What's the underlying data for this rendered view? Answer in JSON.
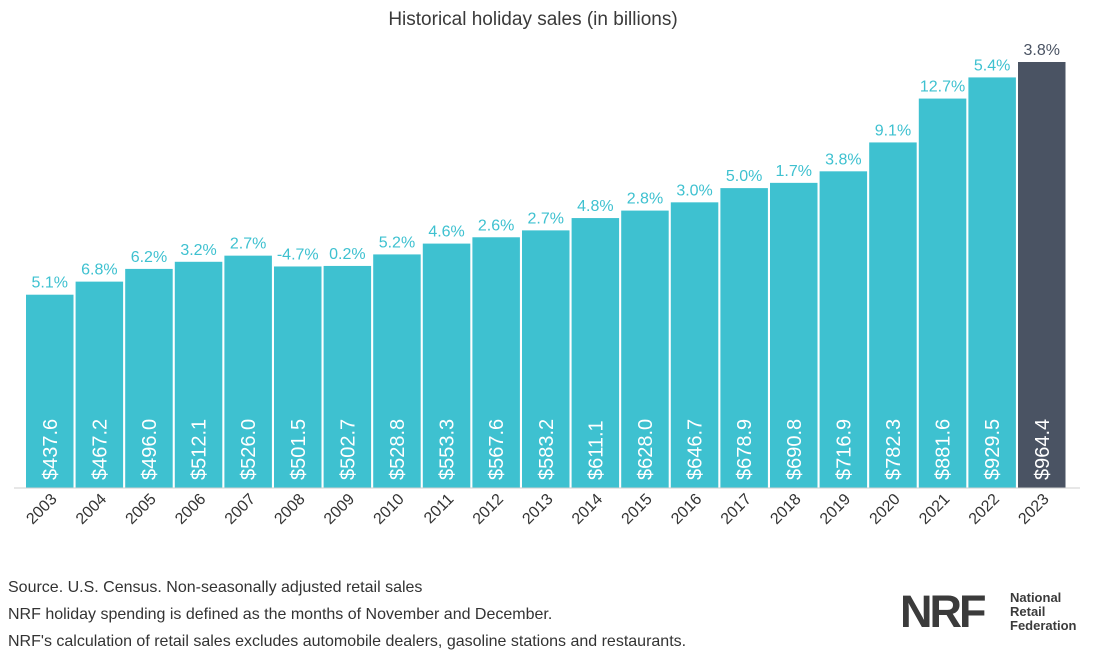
{
  "chart_data": {
    "type": "bar",
    "title": "Historical holiday sales (in billions)",
    "categories": [
      "2003",
      "2004",
      "2005",
      "2006",
      "2007",
      "2008",
      "2009",
      "2010",
      "2011",
      "2012",
      "2013",
      "2014",
      "2015",
      "2016",
      "2017",
      "2018",
      "2019",
      "2020",
      "2021",
      "2022",
      "2023"
    ],
    "values": [
      437.6,
      467.2,
      496.0,
      512.1,
      526.0,
      501.5,
      502.7,
      528.8,
      553.3,
      567.6,
      583.2,
      611.1,
      628.0,
      646.7,
      678.9,
      690.8,
      716.9,
      782.3,
      881.6,
      929.5,
      964.4
    ],
    "value_labels": [
      "$437.6",
      "$467.2",
      "$496.0",
      "$512.1",
      "$526.0",
      "$501.5",
      "$502.7",
      "$528.8",
      "$553.3",
      "$567.6",
      "$583.2",
      "$611.1",
      "$628.0",
      "$646.7",
      "$678.9",
      "$690.8",
      "$716.9",
      "$782.3",
      "$881.6",
      "$929.5",
      "$964.4"
    ],
    "growth_labels": [
      "5.1%",
      "6.8%",
      "6.2%",
      "3.2%",
      "2.7%",
      "-4.7%",
      "0.2%",
      "5.2%",
      "4.6%",
      "2.6%",
      "2.7%",
      "4.8%",
      "2.8%",
      "3.0%",
      "5.0%",
      "1.7%",
      "3.8%",
      "9.1%",
      "12.7%",
      "5.4%",
      "3.8%"
    ],
    "highlight_index": 20,
    "colors": {
      "bar": "#3ec1d0",
      "highlight": "#4a5363",
      "growth_label": "#3ec1d0",
      "highlight_label": "#4a5363"
    },
    "xlabel": "",
    "ylabel": "",
    "grid": false
  },
  "footnotes": [
    "Source. U.S. Census. Non-seasonally adjusted retail sales",
    "NRF holiday spending is defined as the months of November and December.",
    "NRF's calculation of retail sales excludes automobile dealers, gasoline stations and restaurants."
  ],
  "logo": {
    "mark": "NRF",
    "line1": "National",
    "line2": "Retail",
    "line3": "Federation"
  }
}
